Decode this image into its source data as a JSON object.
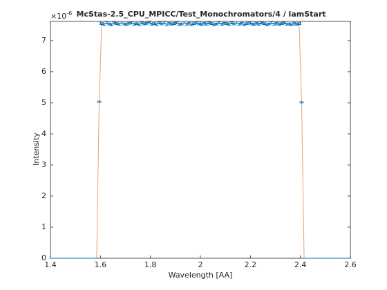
{
  "chart_data": {
    "type": "errorbar",
    "title": "McStas-2.5_CPU_MPICC/Test_Monochromators/4 / lamStart",
    "xlabel": "Wavelength [AA]",
    "ylabel": "Intensity",
    "y_multiplier": {
      "base": "×10",
      "exponent": "-6"
    },
    "x": [
      1.405,
      1.415,
      1.425,
      1.435,
      1.445,
      1.455,
      1.465,
      1.475,
      1.485,
      1.495,
      1.505,
      1.515,
      1.525,
      1.535,
      1.545,
      1.555,
      1.565,
      1.575,
      1.585,
      1.595,
      1.605,
      1.615,
      1.625,
      1.635,
      1.645,
      1.655,
      1.665,
      1.675,
      1.685,
      1.695,
      1.705,
      1.715,
      1.725,
      1.735,
      1.745,
      1.755,
      1.765,
      1.775,
      1.785,
      1.795,
      1.805,
      1.815,
      1.825,
      1.835,
      1.845,
      1.855,
      1.865,
      1.875,
      1.885,
      1.895,
      1.905,
      1.915,
      1.925,
      1.935,
      1.945,
      1.955,
      1.965,
      1.975,
      1.985,
      1.995,
      2.005,
      2.015,
      2.025,
      2.035,
      2.045,
      2.055,
      2.065,
      2.075,
      2.085,
      2.095,
      2.105,
      2.115,
      2.125,
      2.135,
      2.145,
      2.155,
      2.165,
      2.175,
      2.185,
      2.195,
      2.205,
      2.215,
      2.225,
      2.235,
      2.245,
      2.255,
      2.265,
      2.275,
      2.285,
      2.295,
      2.305,
      2.315,
      2.325,
      2.335,
      2.345,
      2.355,
      2.365,
      2.375,
      2.385,
      2.395,
      2.405,
      2.415,
      2.425,
      2.435,
      2.445,
      2.455,
      2.465,
      2.475,
      2.485,
      2.495,
      2.505,
      2.515,
      2.525,
      2.535,
      2.545,
      2.555,
      2.565,
      2.575,
      2.585,
      2.595
    ],
    "values": [
      0,
      0,
      0,
      0,
      0,
      0,
      0,
      0,
      0,
      0,
      0,
      0,
      0,
      0,
      0,
      0,
      0,
      0,
      0,
      5.04,
      7.55,
      7.52,
      7.58,
      7.54,
      7.51,
      7.57,
      7.55,
      7.53,
      7.59,
      7.54,
      7.52,
      7.56,
      7.58,
      7.53,
      7.55,
      7.51,
      7.57,
      7.54,
      7.56,
      7.6,
      7.53,
      7.55,
      7.52,
      7.57,
      7.54,
      7.58,
      7.51,
      7.56,
      7.53,
      7.55,
      7.57,
      7.52,
      7.54,
      7.59,
      7.53,
      7.56,
      7.51,
      7.55,
      7.58,
      7.54,
      7.52,
      7.56,
      7.53,
      7.57,
      7.55,
      7.51,
      7.54,
      7.58,
      7.53,
      7.56,
      7.55,
      7.52,
      7.57,
      7.54,
      7.59,
      7.53,
      7.56,
      7.51,
      7.55,
      7.58,
      7.54,
      7.52,
      7.56,
      7.53,
      7.57,
      7.55,
      7.51,
      7.54,
      7.58,
      7.53,
      7.56,
      7.52,
      7.55,
      7.57,
      7.53,
      7.54,
      7.51,
      7.56,
      7.53,
      7.55,
      5.02,
      0,
      0,
      0,
      0,
      0,
      0,
      0,
      0,
      0,
      0,
      0,
      0,
      0,
      0,
      0,
      0,
      0,
      0,
      0
    ],
    "errors": [
      0,
      0,
      0,
      0,
      0,
      0,
      0,
      0,
      0,
      0,
      0,
      0,
      0,
      0,
      0,
      0,
      0,
      0,
      0,
      0.02,
      0.03,
      0.03,
      0.03,
      0.03,
      0.03,
      0.03,
      0.03,
      0.03,
      0.03,
      0.03,
      0.03,
      0.03,
      0.03,
      0.03,
      0.03,
      0.03,
      0.03,
      0.03,
      0.03,
      0.03,
      0.03,
      0.03,
      0.03,
      0.03,
      0.03,
      0.03,
      0.03,
      0.03,
      0.03,
      0.03,
      0.03,
      0.03,
      0.03,
      0.03,
      0.03,
      0.03,
      0.03,
      0.03,
      0.03,
      0.03,
      0.03,
      0.03,
      0.03,
      0.03,
      0.03,
      0.03,
      0.03,
      0.03,
      0.03,
      0.03,
      0.03,
      0.03,
      0.03,
      0.03,
      0.03,
      0.03,
      0.03,
      0.03,
      0.03,
      0.03,
      0.03,
      0.03,
      0.03,
      0.03,
      0.03,
      0.03,
      0.03,
      0.03,
      0.03,
      0.03,
      0.03,
      0.03,
      0.03,
      0.03,
      0.03,
      0.03,
      0.03,
      0.03,
      0.03,
      0.03,
      0.02,
      0,
      0,
      0,
      0,
      0,
      0,
      0,
      0,
      0,
      0,
      0,
      0,
      0,
      0,
      0,
      0,
      0,
      0,
      0
    ],
    "color": "#0072bd",
    "line_color": "#e8a07a",
    "xlim": [
      1.4,
      2.6
    ],
    "xticks": [
      1.4,
      1.6,
      1.8,
      2,
      2.2,
      2.4,
      2.6
    ],
    "ylim": [
      0,
      7.62
    ],
    "yticks": [
      0,
      1,
      2,
      3,
      4,
      5,
      6,
      7
    ]
  }
}
